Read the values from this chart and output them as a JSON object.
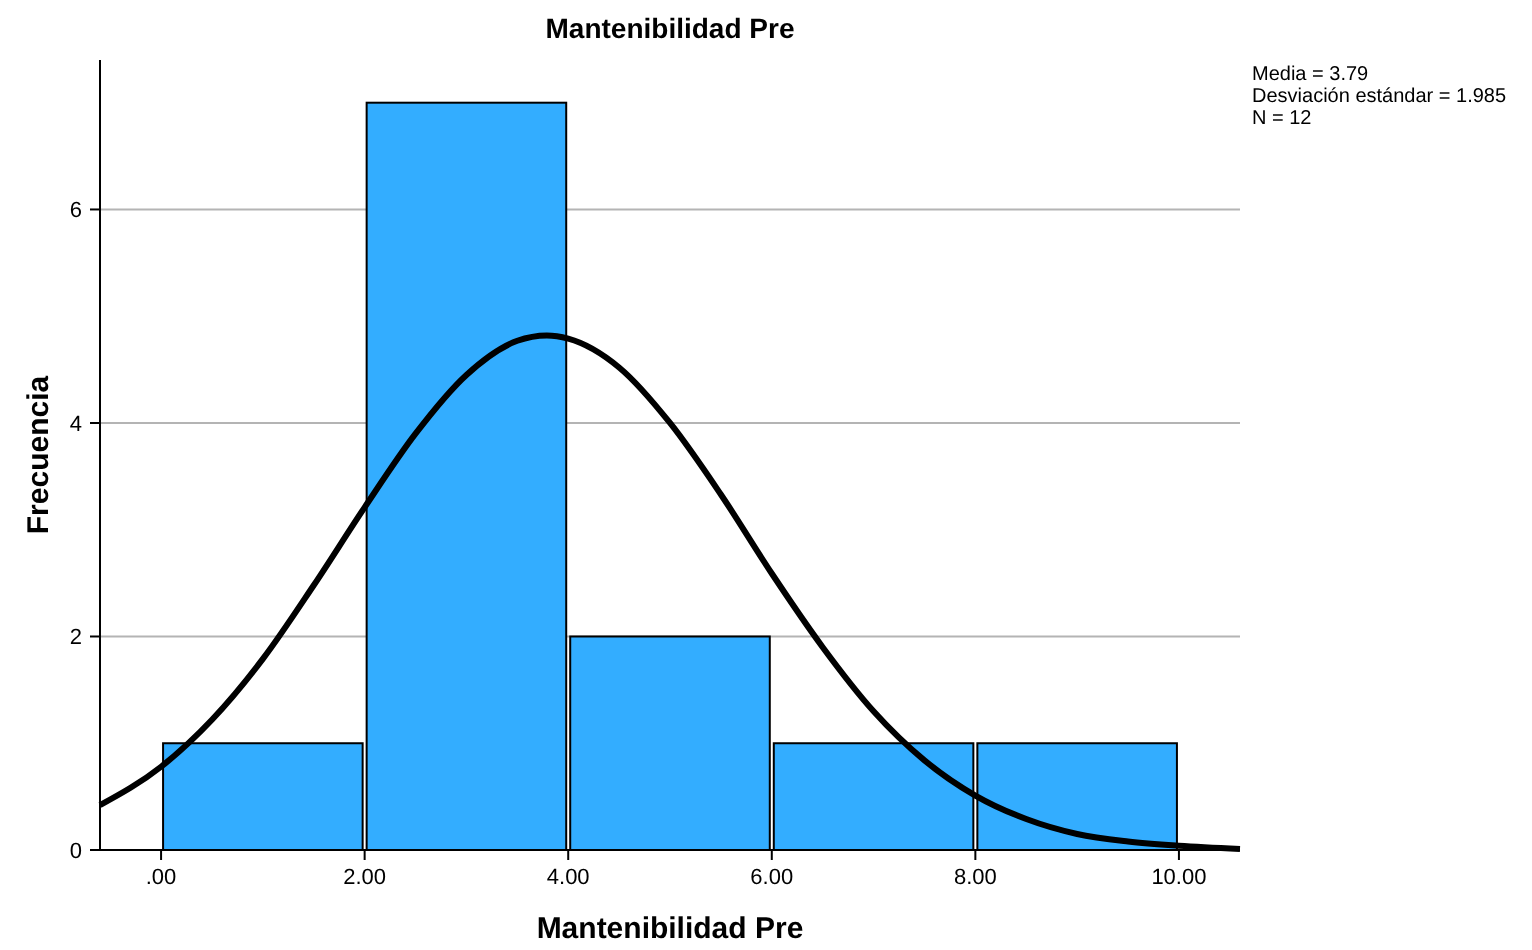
{
  "chart_data": {
    "type": "histogram",
    "title": "Mantenibilidad Pre",
    "xlabel": "Mantenibilidad Pre",
    "ylabel": "Frecuencia",
    "bins": [
      0,
      2,
      4,
      6,
      8,
      10
    ],
    "values": [
      1,
      7,
      2,
      1,
      1
    ],
    "color": "#33adff",
    "series": [
      {
        "type": "line",
        "color": "#000000",
        "x": [
          -0.6,
          0,
          0.5,
          1,
          1.5,
          2,
          2.5,
          3,
          3.5,
          3.79,
          4,
          4.5,
          5,
          5.5,
          6,
          6.5,
          7,
          7.5,
          8,
          8.5,
          9,
          9.5,
          10,
          10.6
        ],
        "values": [
          0.42,
          0.78,
          1.22,
          1.79,
          2.48,
          3.21,
          3.9,
          4.45,
          4.77,
          4.82,
          4.79,
          4.52,
          4.0,
          3.33,
          2.59,
          1.9,
          1.3,
          0.84,
          0.51,
          0.29,
          0.15,
          0.08,
          0.04,
          0.01
        ]
      }
    ],
    "xlim": [
      -0.6,
      10.6
    ],
    "xticks": [
      {
        "value": 0,
        "label": ".00"
      },
      {
        "value": 2,
        "label": "2.00"
      },
      {
        "value": 4,
        "label": "4.00"
      },
      {
        "value": 6,
        "label": "6.00"
      },
      {
        "value": 8,
        "label": "8.00"
      },
      {
        "value": 10,
        "label": "10.00"
      }
    ],
    "ylim": [
      0,
      7.4
    ],
    "yticks": [
      0,
      2,
      4,
      6
    ],
    "grid": "y",
    "annotations": [
      "Media = 3.79",
      "Desviación estándar = 1.985",
      "N = 12"
    ]
  }
}
